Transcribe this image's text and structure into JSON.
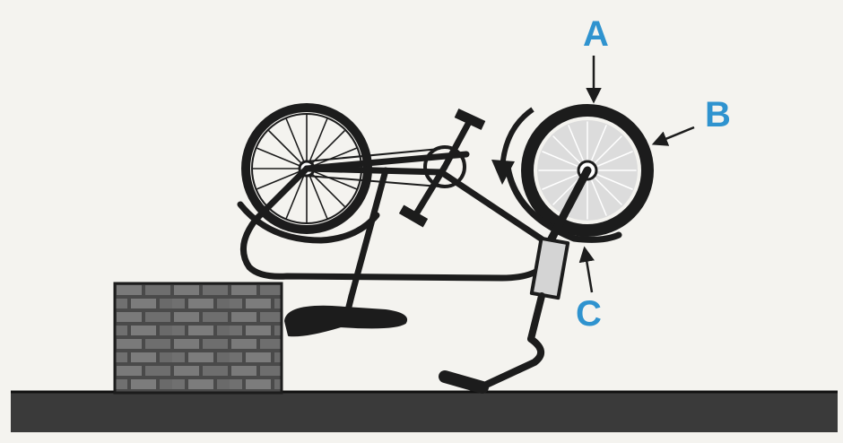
{
  "labels": {
    "a": "A",
    "b": "B",
    "c": "C"
  },
  "colors": {
    "label": "#2f93cf",
    "ink": "#1c1c1c",
    "paper": "#f4f3ef",
    "ground": "#3a3a3a",
    "brick": "#555555",
    "spoke_hub": "#dcdcdc"
  },
  "icons": {
    "arrow_a": "arrow-down-icon",
    "arrow_b": "arrow-down-left-icon",
    "arrow_c": "arrow-up-icon",
    "spin_arrow": "counterclockwise-curved-arrow-icon"
  }
}
